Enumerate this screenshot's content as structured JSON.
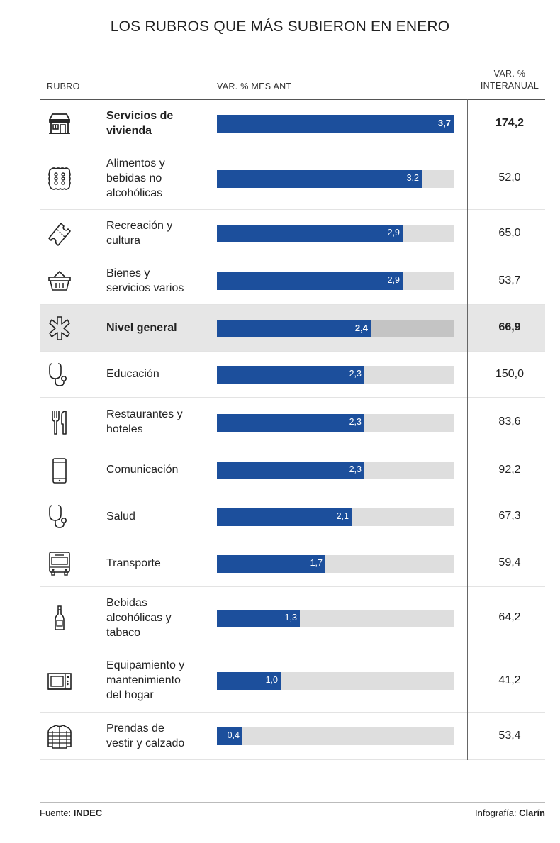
{
  "chart_data": {
    "type": "bar",
    "title": "LOS RUBROS QUE MÁS SUBIERON EN ENERO",
    "column_headers": {
      "rubro": "RUBRO",
      "var_mes": "VAR. % MES ANT",
      "var_inter_line1": "VAR. %",
      "var_inter_line2": "INTERANUAL"
    },
    "xlim": [
      0,
      3.7
    ],
    "rows": [
      {
        "icon": "house-icon",
        "label_lines": [
          "Servicios de",
          "vivienda"
        ],
        "value": 3.7,
        "value_label": "3,7",
        "interanual": "174,2",
        "bold": true,
        "highlight": false
      },
      {
        "icon": "cracker-icon",
        "label_lines": [
          "Alimentos y",
          "bebidas no",
          "alcohólicas"
        ],
        "value": 3.2,
        "value_label": "3,2",
        "interanual": "52,0",
        "bold": false,
        "highlight": false
      },
      {
        "icon": "ticket-icon",
        "label_lines": [
          "Recreación y",
          "cultura"
        ],
        "value": 2.9,
        "value_label": "2,9",
        "interanual": "65,0",
        "bold": false,
        "highlight": false
      },
      {
        "icon": "basket-icon",
        "label_lines": [
          "Bienes y",
          "servicios varios"
        ],
        "value": 2.9,
        "value_label": "2,9",
        "interanual": "53,7",
        "bold": false,
        "highlight": false
      },
      {
        "icon": "asterisk-icon",
        "label_lines": [
          "Nivel general"
        ],
        "value": 2.4,
        "value_label": "2,4",
        "interanual": "66,9",
        "bold": true,
        "highlight": true
      },
      {
        "icon": "stethoscope-icon",
        "label_lines": [
          "Educación"
        ],
        "value": 2.3,
        "value_label": "2,3",
        "interanual": "150,0",
        "bold": false,
        "highlight": false
      },
      {
        "icon": "cutlery-icon",
        "label_lines": [
          "Restaurantes y",
          "hoteles"
        ],
        "value": 2.3,
        "value_label": "2,3",
        "interanual": "83,6",
        "bold": false,
        "highlight": false
      },
      {
        "icon": "phone-icon",
        "label_lines": [
          "Comunicación"
        ],
        "value": 2.3,
        "value_label": "2,3",
        "interanual": "92,2",
        "bold": false,
        "highlight": false
      },
      {
        "icon": "stethoscope-icon",
        "label_lines": [
          "Salud"
        ],
        "value": 2.1,
        "value_label": "2,1",
        "interanual": "67,3",
        "bold": false,
        "highlight": false
      },
      {
        "icon": "bus-icon",
        "label_lines": [
          "Transporte"
        ],
        "value": 1.7,
        "value_label": "1,7",
        "interanual": "59,4",
        "bold": false,
        "highlight": false
      },
      {
        "icon": "bottle-icon",
        "label_lines": [
          "Bebidas",
          "alcohólicas y",
          "tabaco"
        ],
        "value": 1.3,
        "value_label": "1,3",
        "interanual": "64,2",
        "bold": false,
        "highlight": false
      },
      {
        "icon": "microwave-icon",
        "label_lines": [
          "Equipamiento y",
          "mantenimiento",
          "del hogar"
        ],
        "value": 1.0,
        "value_label": "1,0",
        "interanual": "41,2",
        "bold": false,
        "highlight": false
      },
      {
        "icon": "jacket-icon",
        "label_lines": [
          "Prendas de",
          "vestir y calzado"
        ],
        "value": 0.4,
        "value_label": "0,4",
        "interanual": "53,4",
        "bold": false,
        "highlight": false
      }
    ]
  },
  "footer": {
    "source_prefix": "Fuente: ",
    "source_name": "INDEC",
    "credit_prefix": "Infografía: ",
    "credit_name": "Clarín"
  },
  "colors": {
    "bar": "#1c4f9c",
    "track": "#dedede",
    "highlight_bg": "#e6e6e6"
  }
}
